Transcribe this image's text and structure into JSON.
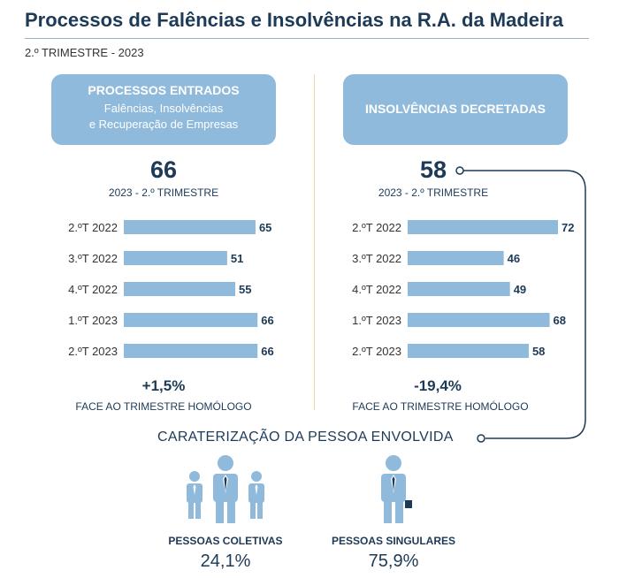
{
  "title": "Processos de Falências e Insolvências na R.A. da Madeira",
  "subtitle": "2.º TRIMESTRE - 2023",
  "left_panel": {
    "heading": "PROCESSOS ENTRADOS",
    "sub1": "Falências, Insolvências",
    "sub2": "e Recuperação de Empresas",
    "total": "66",
    "total_caption": "2023 - 2.º TRIMESTRE",
    "change": "+1,5%",
    "change_caption": "FACE AO TRIMESTRE HOMÓLOGO"
  },
  "right_panel": {
    "heading": "INSOLVÊNCIAS DECRETADAS",
    "total": "58",
    "total_caption": "2023 - 2.º TRIMESTRE",
    "change": "-19,4%",
    "change_caption": "FACE AO TRIMESTRE HOMÓLOGO"
  },
  "caraterizacao": {
    "title": "CARATERIZAÇÃO DA PESSOA ENVOLVIDA",
    "coletivas_label": "PESSOAS COLETIVAS",
    "coletivas_value": "24,1%",
    "singulares_label": "PESSOAS SINGULARES",
    "singulares_value": "75,9%"
  },
  "colors": {
    "bar": "#8fbadb",
    "text": "#1d3a57",
    "line": "#1d3a57"
  },
  "chart_data": [
    {
      "type": "bar",
      "orientation": "horizontal",
      "categories": [
        "2.ºT 2022",
        "3.ºT 2022",
        "4.ºT 2022",
        "1.ºT 2023",
        "2.ºT 2023"
      ],
      "values": [
        65,
        51,
        55,
        66,
        66
      ],
      "title": "PROCESSOS ENTRADOS",
      "xlim": [
        0,
        72
      ]
    },
    {
      "type": "bar",
      "orientation": "horizontal",
      "categories": [
        "2.ºT 2022",
        "3.ºT 2022",
        "4.ºT 2022",
        "1.ºT 2023",
        "2.ºT 2023"
      ],
      "values": [
        72,
        46,
        49,
        68,
        58
      ],
      "title": "INSOLVÊNCIAS DECRETADAS",
      "xlim": [
        0,
        72
      ]
    }
  ]
}
